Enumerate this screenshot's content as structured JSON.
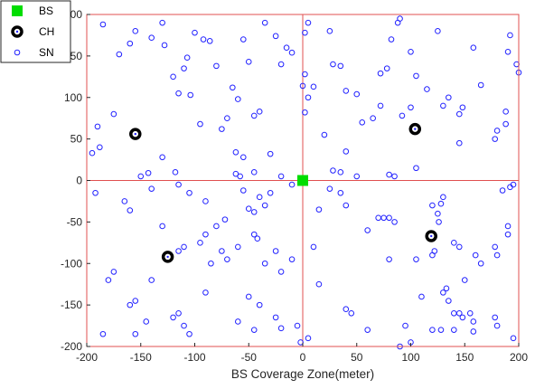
{
  "chart_data": {
    "type": "scatter",
    "title": "",
    "xlabel": "BS Coverage Zone(meter)",
    "ylabel": "",
    "xlim": [
      -200,
      200
    ],
    "ylim": [
      -200,
      200
    ],
    "xticks": [
      -200,
      -150,
      -100,
      -50,
      0,
      50,
      100,
      150,
      200
    ],
    "yticks": [
      -200,
      -150,
      -100,
      -50,
      0,
      50,
      100,
      150,
      200
    ],
    "grid": false,
    "legend_position": "top-left",
    "legend": [
      "BS",
      "CH",
      "SN"
    ],
    "colors": {
      "bs": "#00dd00",
      "ch": "#000000",
      "sn": "#2222ff",
      "divider": "#e05050",
      "frame": "#e05050"
    },
    "series": [
      {
        "name": "BS",
        "marker": "filled-square",
        "points": [
          [
            0,
            0
          ]
        ]
      },
      {
        "name": "CH",
        "marker": "ring",
        "points": [
          [
            -155,
            56
          ],
          [
            104,
            62
          ],
          [
            -125,
            -92
          ],
          [
            119,
            -67
          ]
        ]
      },
      {
        "name": "SN",
        "marker": "small-circle",
        "points": [
          [
            -185,
            188
          ],
          [
            -175,
            80
          ],
          [
            -190,
            65
          ],
          [
            -160,
            165
          ],
          [
            -170,
            152
          ],
          [
            -155,
            180
          ],
          [
            -140,
            172
          ],
          [
            -130,
            190
          ],
          [
            -128,
            163
          ],
          [
            -120,
            125
          ],
          [
            -115,
            105
          ],
          [
            -110,
            135
          ],
          [
            -107,
            148
          ],
          [
            -104,
            103
          ],
          [
            -100,
            178
          ],
          [
            -92,
            170
          ],
          [
            -86,
            168
          ],
          [
            -80,
            138
          ],
          [
            -70,
            75
          ],
          [
            -65,
            112
          ],
          [
            -60,
            98
          ],
          [
            -55,
            170
          ],
          [
            -50,
            143
          ],
          [
            -45,
            78
          ],
          [
            -40,
            83
          ],
          [
            -35,
            190
          ],
          [
            -25,
            174
          ],
          [
            -20,
            140
          ],
          [
            -15,
            160
          ],
          [
            -10,
            154
          ],
          [
            -30,
            32
          ],
          [
            -62,
            34
          ],
          [
            -55,
            28
          ],
          [
            -75,
            62
          ],
          [
            -95,
            68
          ],
          [
            -130,
            28
          ],
          [
            -118,
            10
          ],
          [
            -150,
            5
          ],
          [
            -143,
            9
          ],
          [
            -160,
            -36
          ],
          [
            -140,
            -10
          ],
          [
            -195,
            33
          ],
          [
            -188,
            40
          ],
          [
            -192,
            -15
          ],
          [
            -165,
            -25
          ],
          [
            -115,
            -5
          ],
          [
            -105,
            -15
          ],
          [
            -90,
            -25
          ],
          [
            -62,
            8
          ],
          [
            -58,
            5
          ],
          [
            -45,
            10
          ],
          [
            -40,
            -20
          ],
          [
            -55,
            -12
          ],
          [
            -30,
            -15
          ],
          [
            -20,
            5
          ],
          [
            -10,
            -5
          ],
          [
            -35,
            -30
          ],
          [
            -45,
            -38
          ],
          [
            -50,
            -34
          ],
          [
            -72,
            -47
          ],
          [
            -80,
            -55
          ],
          [
            -90,
            -65
          ],
          [
            -95,
            -75
          ],
          [
            -110,
            -80
          ],
          [
            -115,
            -85
          ],
          [
            -130,
            -55
          ],
          [
            -140,
            -120
          ],
          [
            -160,
            -150
          ],
          [
            -155,
            -145
          ],
          [
            -175,
            -110
          ],
          [
            -180,
            -120
          ],
          [
            -145,
            -170
          ],
          [
            -120,
            -165
          ],
          [
            -115,
            -160
          ],
          [
            -110,
            -175
          ],
          [
            -90,
            -135
          ],
          [
            -85,
            -100
          ],
          [
            -75,
            -85
          ],
          [
            -70,
            -95
          ],
          [
            -60,
            -80
          ],
          [
            -45,
            -65
          ],
          [
            -42,
            -70
          ],
          [
            -35,
            -100
          ],
          [
            -25,
            -85
          ],
          [
            -20,
            -110
          ],
          [
            -10,
            -95
          ],
          [
            -40,
            -150
          ],
          [
            -50,
            -140
          ],
          [
            -60,
            -170
          ],
          [
            -45,
            -180
          ],
          [
            -25,
            -165
          ],
          [
            -20,
            -178
          ],
          [
            -5,
            -175
          ],
          [
            -185,
            -185
          ],
          [
            -155,
            -185
          ],
          [
            -105,
            -185
          ],
          [
            -2,
            -195
          ],
          [
            5,
            190
          ],
          [
            2,
            178
          ],
          [
            2,
            128
          ],
          [
            0,
            114
          ],
          [
            5,
            100
          ],
          [
            10,
            113
          ],
          [
            25,
            180
          ],
          [
            28,
            140
          ],
          [
            35,
            138
          ],
          [
            40,
            108
          ],
          [
            50,
            104
          ],
          [
            55,
            70
          ],
          [
            65,
            75
          ],
          [
            72,
            90
          ],
          [
            72,
            129
          ],
          [
            78,
            135
          ],
          [
            82,
            170
          ],
          [
            88,
            190
          ],
          [
            90,
            195
          ],
          [
            92,
            78
          ],
          [
            100,
            88
          ],
          [
            100,
            155
          ],
          [
            105,
            126
          ],
          [
            115,
            110
          ],
          [
            125,
            180
          ],
          [
            130,
            90
          ],
          [
            135,
            100
          ],
          [
            148,
            88
          ],
          [
            145,
            80
          ],
          [
            145,
            45
          ],
          [
            158,
            160
          ],
          [
            165,
            115
          ],
          [
            178,
            50
          ],
          [
            180,
            60
          ],
          [
            188,
            83
          ],
          [
            188,
            68
          ],
          [
            190,
            155
          ],
          [
            192,
            175
          ],
          [
            198,
            140
          ],
          [
            200,
            130
          ],
          [
            2,
            82
          ],
          [
            20,
            55
          ],
          [
            40,
            35
          ],
          [
            35,
            10
          ],
          [
            28,
            12
          ],
          [
            50,
            5
          ],
          [
            80,
            7
          ],
          [
            85,
            5
          ],
          [
            105,
            15
          ],
          [
            120,
            -30
          ],
          [
            130,
            -20
          ],
          [
            128,
            -28
          ],
          [
            125,
            -40
          ],
          [
            126,
            -50
          ],
          [
            195,
            -5
          ],
          [
            192,
            -8
          ],
          [
            185,
            -12
          ],
          [
            190,
            -55
          ],
          [
            190,
            -65
          ],
          [
            140,
            -75
          ],
          [
            145,
            -80
          ],
          [
            160,
            -90
          ],
          [
            178,
            -80
          ],
          [
            180,
            -90
          ],
          [
            165,
            -100
          ],
          [
            15,
            -35
          ],
          [
            25,
            -10
          ],
          [
            35,
            -15
          ],
          [
            40,
            -30
          ],
          [
            10,
            -80
          ],
          [
            60,
            -60
          ],
          [
            70,
            -45
          ],
          [
            75,
            -45
          ],
          [
            80,
            -45
          ],
          [
            85,
            -50
          ],
          [
            105,
            -95
          ],
          [
            80,
            -95
          ],
          [
            5,
            -190
          ],
          [
            15,
            -125
          ],
          [
            40,
            -155
          ],
          [
            45,
            -160
          ],
          [
            60,
            -180
          ],
          [
            110,
            -140
          ],
          [
            122,
            -85
          ],
          [
            120,
            -90
          ],
          [
            130,
            -135
          ],
          [
            133,
            -130
          ],
          [
            135,
            -145
          ],
          [
            140,
            -160
          ],
          [
            145,
            -160
          ],
          [
            148,
            -165
          ],
          [
            150,
            -120
          ],
          [
            155,
            -160
          ],
          [
            158,
            -170
          ],
          [
            178,
            -165
          ],
          [
            180,
            -175
          ],
          [
            195,
            -190
          ],
          [
            90,
            -200
          ],
          [
            95,
            -175
          ],
          [
            100,
            -195
          ],
          [
            120,
            -180
          ],
          [
            128,
            -180
          ],
          [
            140,
            -180
          ],
          [
            158,
            -182
          ]
        ]
      }
    ]
  }
}
